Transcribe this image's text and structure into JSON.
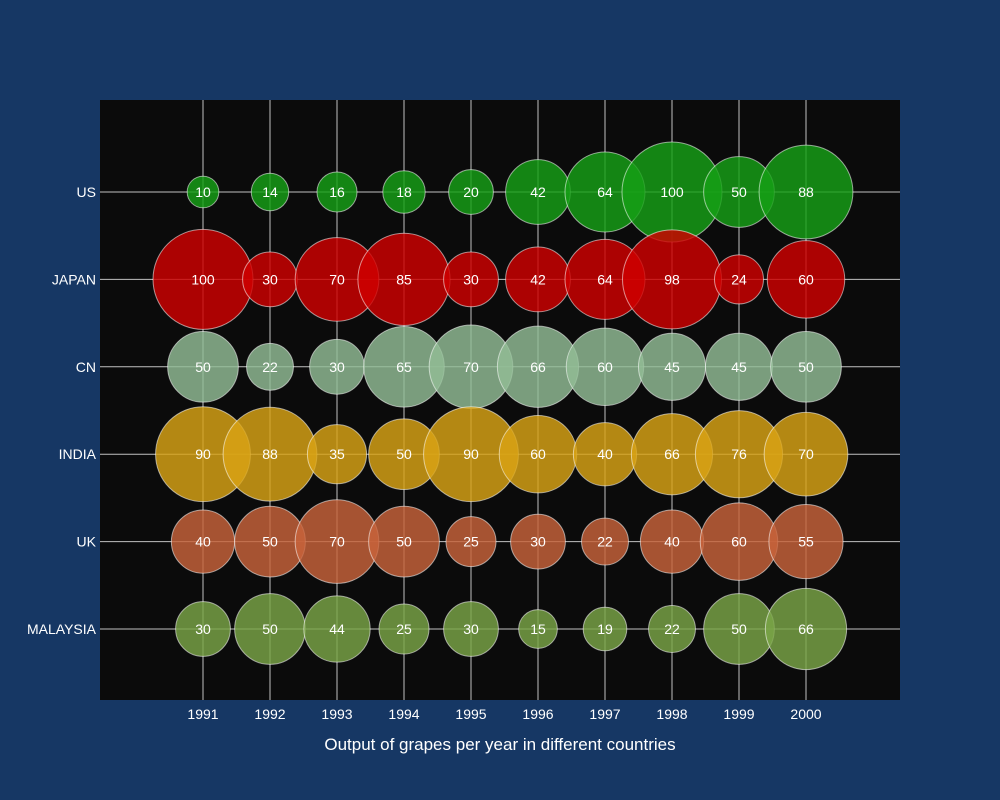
{
  "chart_data": {
    "type": "scatter",
    "xlabel": "Output of grapes per year in different countries",
    "ylabel": "",
    "x": [
      "1991",
      "1992",
      "1993",
      "1994",
      "1995",
      "1996",
      "1997",
      "1998",
      "1999",
      "2000"
    ],
    "categories": [
      "US",
      "JAPAN",
      "CN",
      "INDIA",
      "UK",
      "MALAYSIA"
    ],
    "grid": true,
    "legend": "none",
    "series": [
      {
        "name": "US",
        "color": "#16a016",
        "values": [
          10,
          14,
          16,
          18,
          20,
          42,
          64,
          100,
          50,
          88
        ]
      },
      {
        "name": "JAPAN",
        "color": "#d00000",
        "values": [
          100,
          30,
          70,
          85,
          30,
          42,
          64,
          98,
          24,
          60
        ]
      },
      {
        "name": "CN",
        "color": "#93bd96",
        "values": [
          50,
          22,
          30,
          65,
          70,
          66,
          60,
          45,
          45,
          50
        ]
      },
      {
        "name": "INDIA",
        "color": "#d9a315",
        "values": [
          90,
          88,
          35,
          50,
          90,
          60,
          40,
          66,
          76,
          70
        ]
      },
      {
        "name": "UK",
        "color": "#c8633a",
        "values": [
          40,
          50,
          70,
          50,
          25,
          30,
          22,
          40,
          60,
          55
        ]
      },
      {
        "name": "MALAYSIA",
        "color": "#7aa547",
        "values": [
          30,
          50,
          44,
          25,
          30,
          15,
          19,
          22,
          50,
          66
        ]
      }
    ]
  },
  "colors": {
    "page_background": "#163764",
    "plot_background": "#0b0b0b",
    "grid": "#ffffff",
    "text": "#ffffff"
  }
}
